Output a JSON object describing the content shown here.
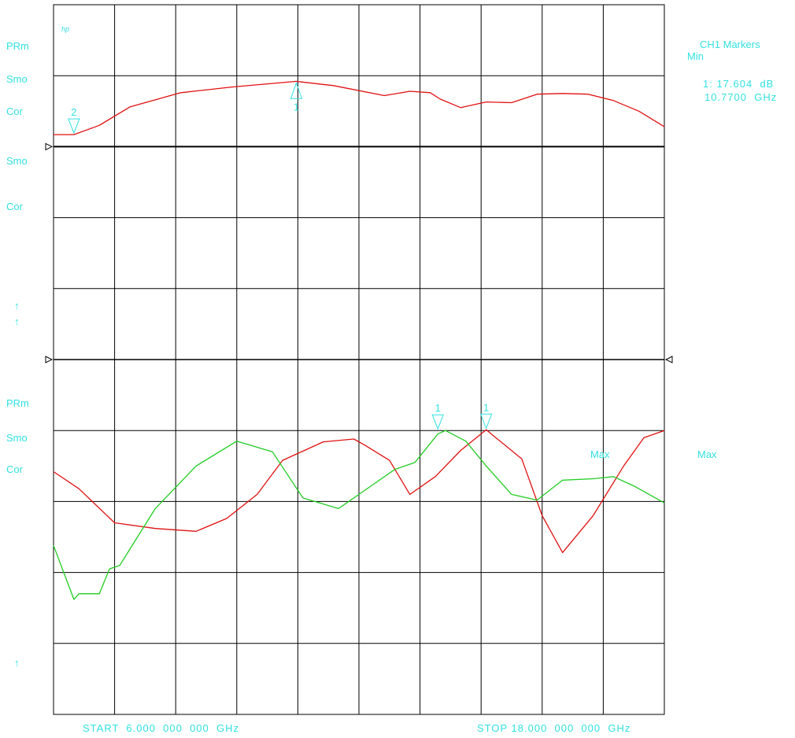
{
  "logo": "hp",
  "colors": {
    "grid": "#000000",
    "annotation": "#33e0e0",
    "trace_red": "#e01010",
    "trace_green": "#22cc22"
  },
  "upper_labels": [
    "PRm",
    "Smo",
    "Cor",
    "Smo",
    "Cor"
  ],
  "upper_arrows": [
    "↑",
    "↑"
  ],
  "lower_labels": [
    "PRm",
    "Smo",
    "Cor"
  ],
  "lower_arrows": [
    "↑"
  ],
  "markers_panel": {
    "title": "CH1 Markers",
    "mode": "Min",
    "line1": "1: 17.604  dB",
    "line2": "10.7700  GHz"
  },
  "lower_max_in": "Max",
  "lower_max_right": "Max",
  "start_label": "START  6.000  000  000  GHz",
  "stop_label": "STOP 18.000  000  000  GHz",
  "chart_data": {
    "type": "line",
    "x_range_ghz": [
      6.0,
      18.0
    ],
    "upper": {
      "marker_labels": [
        "1",
        "2"
      ],
      "series": [
        {
          "color": "red",
          "x": [
            6.0,
            6.4,
            6.9,
            7.5,
            8.5,
            9.5,
            10.77,
            11.5,
            12.5,
            13.0,
            13.4,
            13.6,
            14.0,
            14.5,
            15.0,
            15.5,
            16.0,
            16.5,
            17.0,
            17.5,
            18.0
          ],
          "y": [
            0.17,
            0.17,
            0.3,
            0.56,
            0.76,
            0.84,
            0.92,
            0.86,
            0.72,
            0.78,
            0.76,
            0.67,
            0.55,
            0.63,
            0.62,
            0.74,
            0.75,
            0.74,
            0.65,
            0.5,
            0.28
          ]
        }
      ]
    },
    "lower": {
      "marker_labels": [
        "1",
        "1"
      ],
      "series": [
        {
          "color": "red",
          "x": [
            6.0,
            6.5,
            7.2,
            8.0,
            8.8,
            9.4,
            10.0,
            10.5,
            11.3,
            11.9,
            12.1,
            12.6,
            13.0,
            13.5,
            14.0,
            14.5,
            15.2,
            15.6,
            16.0,
            16.6,
            17.2,
            17.6,
            18.0
          ],
          "y": [
            0.42,
            0.18,
            -0.3,
            -0.38,
            -0.42,
            -0.24,
            0.1,
            0.58,
            0.84,
            0.88,
            0.8,
            0.58,
            0.1,
            0.35,
            0.72,
            1.01,
            0.6,
            -0.2,
            -0.72,
            -0.2,
            0.5,
            0.9,
            1.0
          ]
        }
      ]
    },
    "lower_green": {
      "color": "green",
      "x": [
        6.0,
        6.4,
        6.5,
        6.9,
        7.1,
        7.3,
        8.0,
        8.8,
        9.6,
        10.3,
        10.9,
        11.6,
        12.2,
        12.7,
        13.1,
        13.55,
        13.7,
        14.1,
        14.5,
        15.0,
        15.5,
        16.0,
        16.6,
        17.0,
        17.4,
        18.0
      ],
      "y": [
        -0.62,
        -1.38,
        -1.3,
        -1.3,
        -0.95,
        -0.9,
        -0.1,
        0.5,
        0.85,
        0.7,
        0.05,
        -0.1,
        0.2,
        0.45,
        0.55,
        0.95,
        1.0,
        0.85,
        0.5,
        0.1,
        0.02,
        0.3,
        0.32,
        0.35,
        0.22,
        -0.02
      ]
    }
  }
}
